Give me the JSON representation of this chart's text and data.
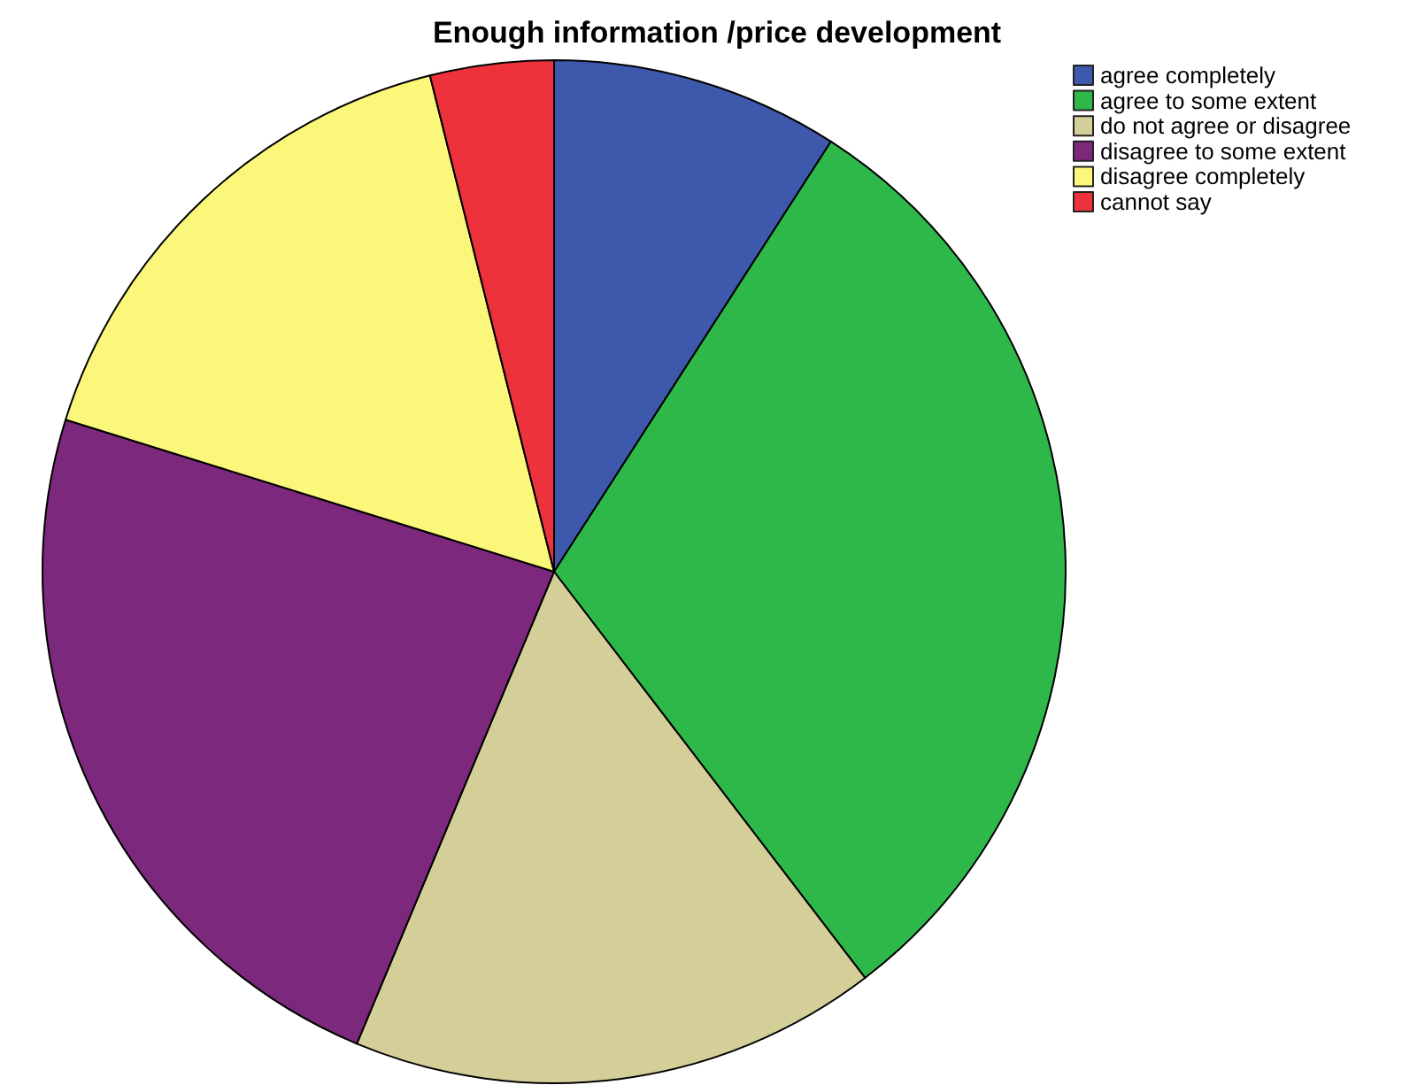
{
  "chart_data": {
    "type": "pie",
    "title": "Enough information /price development",
    "categories": [
      "agree completely",
      "agree to some extent",
      "do not agree or disagree",
      "disagree to some extent",
      "disagree completely",
      "cannot say"
    ],
    "values": [
      9.1,
      30.5,
      16.7,
      23.5,
      16.3,
      3.9
    ],
    "colors": [
      "#3e58ab",
      "#2eb84a",
      "#d4cf99",
      "#7c287c",
      "#fbf77a",
      "#ee323c"
    ],
    "legend": "top right"
  }
}
